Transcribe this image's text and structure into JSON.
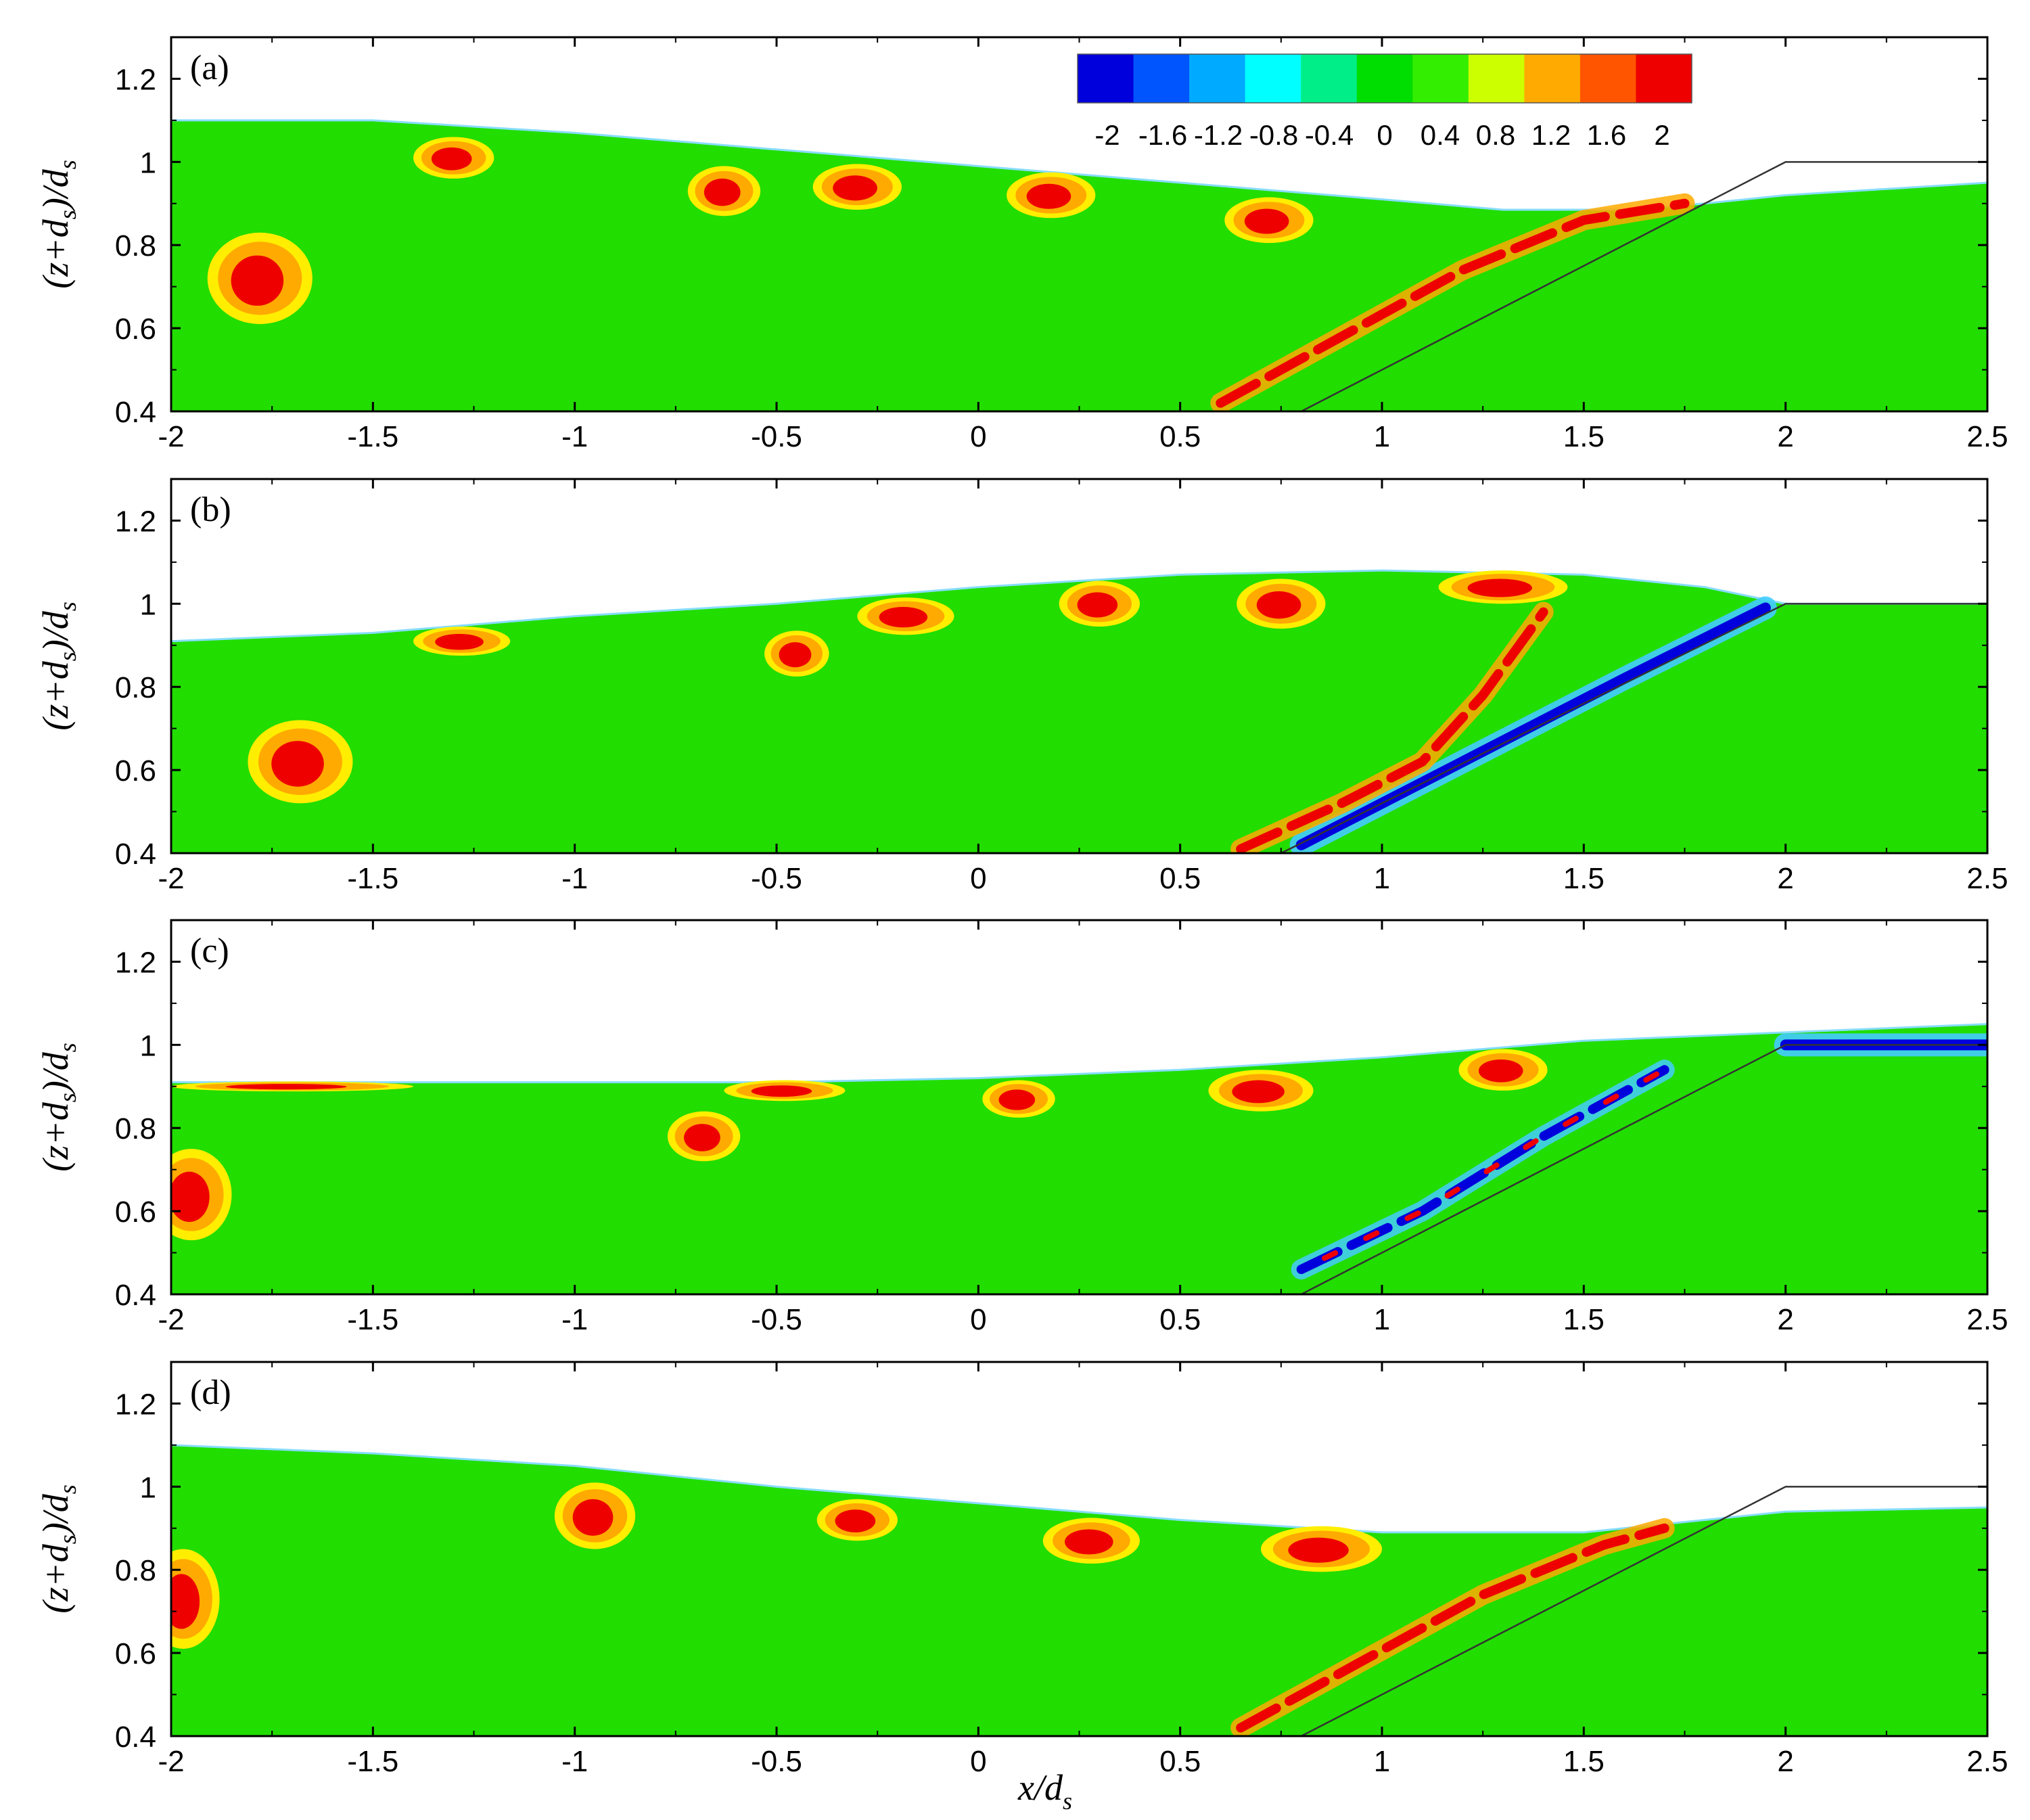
{
  "figure": {
    "xlabel_main": "x/d",
    "xlabel_sub": "s",
    "ylabel_parts": [
      "(z+d",
      "s",
      ")/d",
      "s"
    ]
  },
  "colorbar": {
    "labels": [
      "-2",
      "-1.6",
      "-1.2",
      "-0.8",
      "-0.4",
      "0",
      "0.4",
      "0.8",
      "1.2",
      "1.6",
      "2"
    ],
    "colors": [
      "#0000dd",
      "#0055ff",
      "#00aaff",
      "#00ffff",
      "#00ee88",
      "#00dd00",
      "#33ee00",
      "#ccff00",
      "#ffaa00",
      "#ff5500",
      "#ee0000"
    ]
  },
  "colors": {
    "background_field": "#22dd00",
    "positive_high": "#ee0000",
    "positive_mid": "#ffaa00",
    "positive_low": "#ffee00",
    "negative_high": "#0000dd",
    "negative_mid": "#0055ff",
    "negative_low": "#44ccff"
  },
  "chart_data": [
    {
      "type": "heatmap",
      "panel": "(a)",
      "xlim": [
        -2,
        2.5
      ],
      "ylim": [
        0.4,
        1.3
      ],
      "xticks": [
        "-2",
        "-1.5",
        "-1",
        "-0.5",
        "0",
        "0.5",
        "1",
        "1.5",
        "2",
        "2.5"
      ],
      "yticks": [
        "0.4",
        "0.6",
        "0.8",
        "1",
        "1.2"
      ],
      "surface": [
        [
          -2,
          1.1
        ],
        [
          -1.5,
          1.1
        ],
        [
          -1,
          1.07
        ],
        [
          -0.5,
          1.03
        ],
        [
          0,
          0.99
        ],
        [
          0.5,
          0.95
        ],
        [
          1,
          0.91
        ],
        [
          1.3,
          0.885
        ],
        [
          1.6,
          0.885
        ],
        [
          1.8,
          0.9
        ],
        [
          2.0,
          0.92
        ],
        [
          2.5,
          0.95
        ]
      ],
      "slope": [
        [
          0.8,
          0.4
        ],
        [
          2.0,
          1.0
        ],
        [
          2.5,
          1.0
        ]
      ],
      "vortices": [
        {
          "x": -1.78,
          "y": 0.72,
          "rx": 0.13,
          "ry": 0.11,
          "sign": 1
        },
        {
          "x": -1.3,
          "y": 1.01,
          "rx": 0.1,
          "ry": 0.05,
          "sign": 1
        },
        {
          "x": -0.63,
          "y": 0.93,
          "rx": 0.09,
          "ry": 0.06,
          "sign": 1
        },
        {
          "x": -0.3,
          "y": 0.94,
          "rx": 0.11,
          "ry": 0.055,
          "sign": 1
        },
        {
          "x": 0.18,
          "y": 0.92,
          "rx": 0.11,
          "ry": 0.055,
          "sign": 1
        },
        {
          "x": 0.72,
          "y": 0.86,
          "rx": 0.11,
          "ry": 0.055,
          "sign": 1
        }
      ],
      "shear_layer": [
        [
          0.6,
          0.42
        ],
        [
          0.9,
          0.58
        ],
        [
          1.2,
          0.74
        ],
        [
          1.5,
          0.86
        ],
        [
          1.75,
          0.9
        ]
      ],
      "shear_sign": 1
    },
    {
      "type": "heatmap",
      "panel": "(b)",
      "xlim": [
        -2,
        2.5
      ],
      "ylim": [
        0.4,
        1.3
      ],
      "xticks": [
        "-2",
        "-1.5",
        "-1",
        "-0.5",
        "0",
        "0.5",
        "1",
        "1.5",
        "2",
        "2.5"
      ],
      "yticks": [
        "0.4",
        "0.6",
        "0.8",
        "1",
        "1.2"
      ],
      "surface": [
        [
          -2,
          0.91
        ],
        [
          -1.5,
          0.93
        ],
        [
          -1,
          0.97
        ],
        [
          -0.5,
          1.0
        ],
        [
          0,
          1.04
        ],
        [
          0.5,
          1.07
        ],
        [
          1,
          1.08
        ],
        [
          1.5,
          1.07
        ],
        [
          1.8,
          1.04
        ],
        [
          2.0,
          1.0
        ],
        [
          2.5,
          1.0
        ]
      ],
      "slope": [
        [
          0.75,
          0.4
        ],
        [
          2.0,
          1.0
        ],
        [
          2.5,
          1.0
        ]
      ],
      "vortices": [
        {
          "x": -1.68,
          "y": 0.62,
          "rx": 0.13,
          "ry": 0.1,
          "sign": 1
        },
        {
          "x": -1.28,
          "y": 0.91,
          "rx": 0.12,
          "ry": 0.035,
          "sign": 1
        },
        {
          "x": -0.45,
          "y": 0.88,
          "rx": 0.08,
          "ry": 0.055,
          "sign": 1
        },
        {
          "x": -0.18,
          "y": 0.97,
          "rx": 0.12,
          "ry": 0.045,
          "sign": 1
        },
        {
          "x": 0.3,
          "y": 1.0,
          "rx": 0.1,
          "ry": 0.055,
          "sign": 1
        },
        {
          "x": 0.75,
          "y": 1.0,
          "rx": 0.11,
          "ry": 0.06,
          "sign": 1
        },
        {
          "x": 1.3,
          "y": 1.04,
          "rx": 0.16,
          "ry": 0.04,
          "sign": 1
        }
      ],
      "shear_layer": [
        [
          0.65,
          0.41
        ],
        [
          0.9,
          0.52
        ],
        [
          1.1,
          0.62
        ],
        [
          1.25,
          0.78
        ],
        [
          1.4,
          0.98
        ]
      ],
      "shear_sign": 1,
      "neg_band": [
        [
          0.8,
          0.42
        ],
        [
          1.2,
          0.62
        ],
        [
          1.6,
          0.82
        ],
        [
          1.95,
          0.99
        ]
      ]
    },
    {
      "type": "heatmap",
      "panel": "(c)",
      "xlim": [
        -2,
        2.5
      ],
      "ylim": [
        0.4,
        1.3
      ],
      "xticks": [
        "-2",
        "-1.5",
        "-1",
        "-0.5",
        "0",
        "0.5",
        "1",
        "1.5",
        "2",
        "2.5"
      ],
      "yticks": [
        "0.4",
        "0.6",
        "0.8",
        "1",
        "1.2"
      ],
      "surface": [
        [
          -2,
          0.91
        ],
        [
          -1.5,
          0.91
        ],
        [
          -1,
          0.91
        ],
        [
          -0.5,
          0.91
        ],
        [
          0,
          0.92
        ],
        [
          0.5,
          0.94
        ],
        [
          1,
          0.97
        ],
        [
          1.5,
          1.01
        ],
        [
          2.0,
          1.03
        ],
        [
          2.5,
          1.05
        ]
      ],
      "slope": [
        [
          0.8,
          0.4
        ],
        [
          2.0,
          1.0
        ],
        [
          2.5,
          1.0
        ]
      ],
      "vortices": [
        {
          "x": -1.95,
          "y": 0.64,
          "rx": 0.1,
          "ry": 0.11,
          "sign": 1
        },
        {
          "x": -1.7,
          "y": 0.9,
          "rx": 0.3,
          "ry": 0.012,
          "sign": 1
        },
        {
          "x": -0.68,
          "y": 0.78,
          "rx": 0.09,
          "ry": 0.06,
          "sign": 1
        },
        {
          "x": -0.48,
          "y": 0.89,
          "rx": 0.15,
          "ry": 0.025,
          "sign": 1
        },
        {
          "x": 0.1,
          "y": 0.87,
          "rx": 0.09,
          "ry": 0.045,
          "sign": 1
        },
        {
          "x": 0.7,
          "y": 0.89,
          "rx": 0.13,
          "ry": 0.05,
          "sign": 1
        },
        {
          "x": 1.3,
          "y": 0.94,
          "rx": 0.11,
          "ry": 0.05,
          "sign": 1
        }
      ],
      "shear_layer": [
        [
          0.8,
          0.46
        ],
        [
          1.1,
          0.6
        ],
        [
          1.4,
          0.78
        ],
        [
          1.7,
          0.94
        ]
      ],
      "shear_sign": -1,
      "neg_band": [
        [
          2.0,
          1.0
        ],
        [
          2.25,
          1.0
        ],
        [
          2.5,
          1.0
        ]
      ]
    },
    {
      "type": "heatmap",
      "panel": "(d)",
      "xlim": [
        -2,
        2.5
      ],
      "ylim": [
        0.4,
        1.3
      ],
      "xticks": [
        "-2",
        "-1.5",
        "-1",
        "-0.5",
        "0",
        "0.5",
        "1",
        "1.5",
        "2",
        "2.5"
      ],
      "yticks": [
        "0.4",
        "0.6",
        "0.8",
        "1",
        "1.2"
      ],
      "surface": [
        [
          -2,
          1.1
        ],
        [
          -1.5,
          1.08
        ],
        [
          -1,
          1.05
        ],
        [
          -0.5,
          1.0
        ],
        [
          0,
          0.96
        ],
        [
          0.5,
          0.92
        ],
        [
          1,
          0.89
        ],
        [
          1.5,
          0.89
        ],
        [
          1.8,
          0.92
        ],
        [
          2.0,
          0.94
        ],
        [
          2.5,
          0.95
        ]
      ],
      "slope": [
        [
          0.8,
          0.4
        ],
        [
          2.0,
          1.0
        ],
        [
          2.5,
          1.0
        ]
      ],
      "vortices": [
        {
          "x": -1.97,
          "y": 0.73,
          "rx": 0.09,
          "ry": 0.12,
          "sign": 1
        },
        {
          "x": -0.95,
          "y": 0.93,
          "rx": 0.1,
          "ry": 0.08,
          "sign": 1
        },
        {
          "x": -0.3,
          "y": 0.92,
          "rx": 0.1,
          "ry": 0.05,
          "sign": 1
        },
        {
          "x": 0.28,
          "y": 0.87,
          "rx": 0.12,
          "ry": 0.055,
          "sign": 1
        },
        {
          "x": 0.85,
          "y": 0.85,
          "rx": 0.15,
          "ry": 0.055,
          "sign": 1
        }
      ],
      "shear_layer": [
        [
          0.65,
          0.42
        ],
        [
          0.95,
          0.58
        ],
        [
          1.25,
          0.74
        ],
        [
          1.55,
          0.86
        ],
        [
          1.7,
          0.9
        ]
      ],
      "shear_sign": 1
    }
  ]
}
